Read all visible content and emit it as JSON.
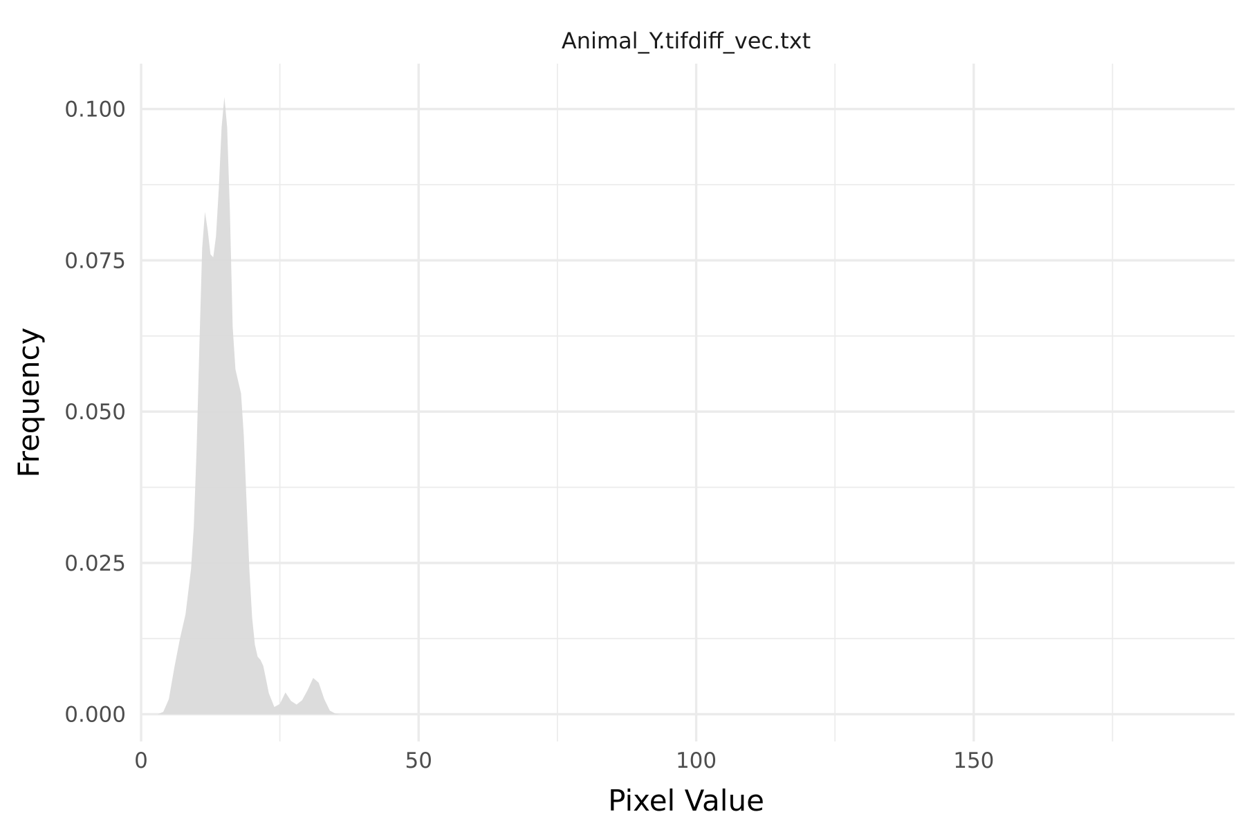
{
  "chart_data": {
    "type": "area",
    "title": "Animal_Y.tifdiff_vec.txt",
    "xlabel": "Pixel Value",
    "ylabel": "Frequency",
    "xlim": [
      0,
      197
    ],
    "ylim": [
      -0.0045,
      0.1075
    ],
    "x_ticks": [
      0,
      50,
      100,
      150
    ],
    "y_ticks": [
      0.0,
      0.025,
      0.05,
      0.075,
      0.1
    ],
    "x_tick_labels": [
      "0",
      "50",
      "100",
      "150"
    ],
    "y_tick_labels": [
      "0.000",
      "0.025",
      "0.050",
      "0.075",
      "0.100"
    ],
    "grid": true,
    "fill_color": "#d9d9d9",
    "series": [
      {
        "x": [
          3,
          4,
          5,
          6,
          7,
          8,
          9,
          9.5,
          10,
          10.5,
          11,
          11.5,
          12,
          12.5,
          13,
          13.5,
          14,
          14.5,
          15,
          15.5,
          16,
          16.5,
          17,
          17.5,
          18,
          18.5,
          19,
          19.5,
          20,
          20.5,
          21,
          21.5,
          22,
          22.5,
          23,
          24,
          25,
          26,
          27,
          28,
          29,
          30,
          31,
          32,
          33,
          34,
          35,
          36,
          37,
          38,
          39
        ],
        "y": [
          0.0,
          0.0004,
          0.0025,
          0.0078,
          0.0125,
          0.0165,
          0.024,
          0.031,
          0.044,
          0.061,
          0.077,
          0.083,
          0.08,
          0.076,
          0.0755,
          0.079,
          0.087,
          0.097,
          0.102,
          0.097,
          0.083,
          0.064,
          0.057,
          0.055,
          0.053,
          0.046,
          0.035,
          0.024,
          0.016,
          0.0115,
          0.0095,
          0.009,
          0.008,
          0.0058,
          0.0035,
          0.0012,
          0.0017,
          0.0036,
          0.0022,
          0.0016,
          0.0023,
          0.004,
          0.006,
          0.0052,
          0.0025,
          0.0006,
          0.0001,
          0.0,
          0.0,
          0.0,
          0.0
        ]
      }
    ]
  }
}
